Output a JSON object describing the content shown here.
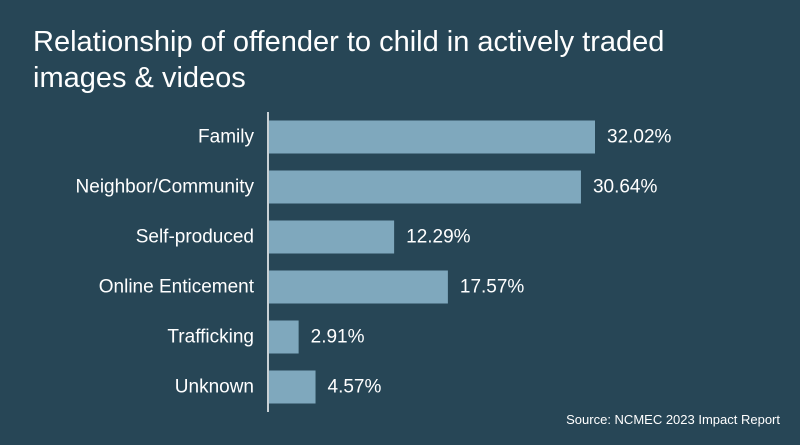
{
  "chart_data": {
    "type": "bar",
    "orientation": "horizontal",
    "title": "Relationship of offender to child in actively traded images & videos",
    "categories": [
      "Family",
      "Neighbor/Community",
      "Self-produced",
      "Online Enticement",
      "Trafficking",
      "Unknown"
    ],
    "values": [
      32.02,
      30.64,
      12.29,
      17.57,
      2.91,
      4.57
    ],
    "value_labels": [
      "32.02%",
      "30.64%",
      "12.29%",
      "17.57%",
      "2.91%",
      "4.57%"
    ],
    "xlim": [
      0,
      32.02
    ],
    "xlabel": "",
    "ylabel": "",
    "grid": false,
    "source": "Source: NCMEC 2023 Impact Report",
    "colors": {
      "background": "#274656",
      "bar": "#7fa8bd",
      "axis": "#ffffff",
      "text": "#ffffff"
    }
  }
}
